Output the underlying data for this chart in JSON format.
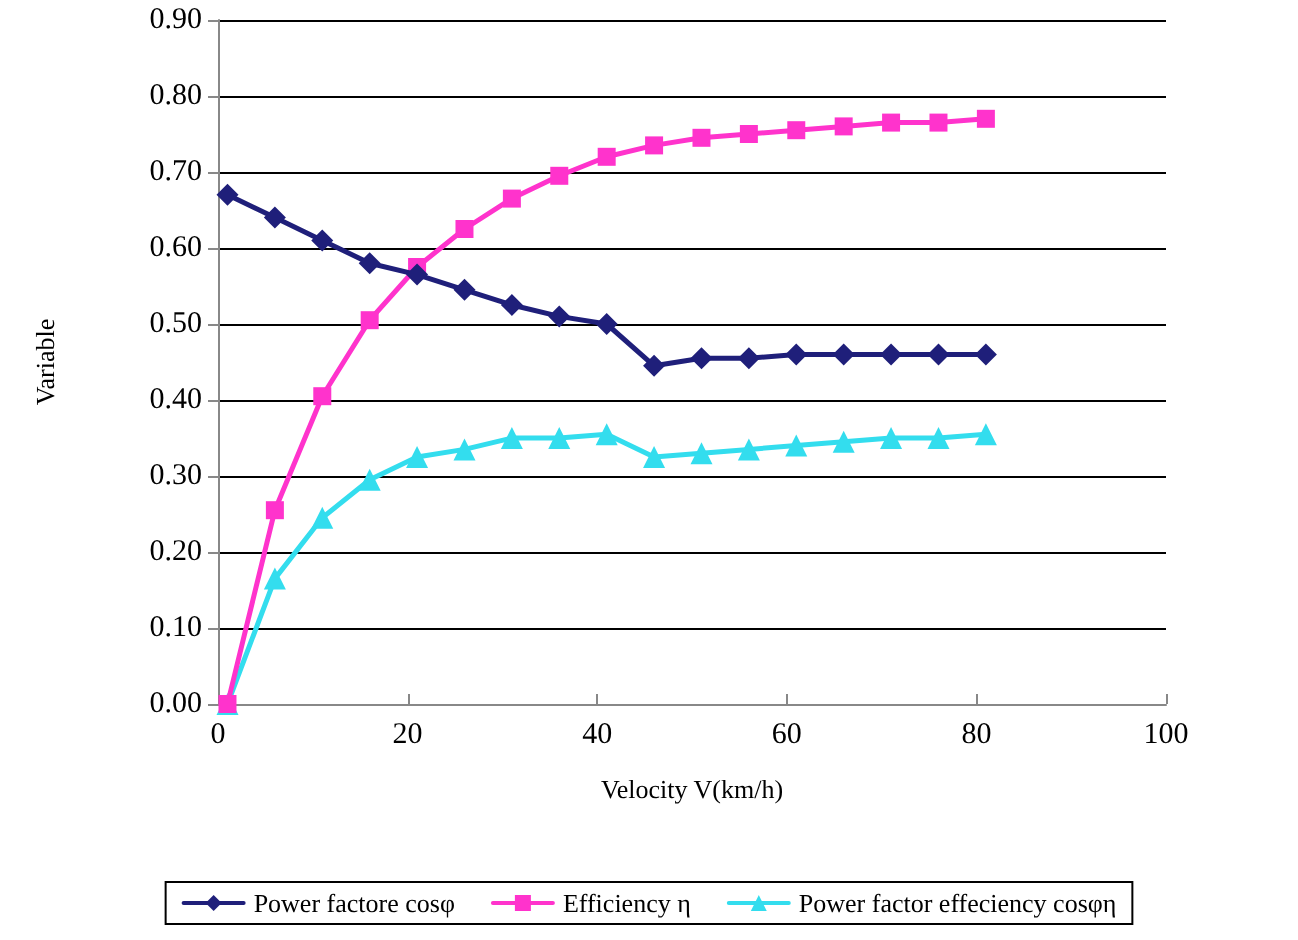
{
  "chart_data": {
    "type": "line",
    "xlabel": "Velocity V(km/h)",
    "ylabel": "Variable",
    "x": [
      1,
      6,
      11,
      16,
      21,
      26,
      31,
      36,
      41,
      46,
      51,
      56,
      61,
      66,
      71,
      76,
      81
    ],
    "series": [
      {
        "name": "Power factore cosφ",
        "color": "#1f1f7a",
        "marker": "diamond",
        "values": [
          0.67,
          0.64,
          0.61,
          0.58,
          0.565,
          0.545,
          0.525,
          0.51,
          0.5,
          0.445,
          0.455,
          0.455,
          0.46,
          0.46,
          0.46,
          0.46,
          0.46
        ]
      },
      {
        "name": "Efficiency η",
        "color": "#ff33cc",
        "marker": "square",
        "values": [
          0,
          0.255,
          0.405,
          0.505,
          0.575,
          0.625,
          0.665,
          0.695,
          0.72,
          0.735,
          0.745,
          0.75,
          0.755,
          0.76,
          0.765,
          0.765,
          0.77
        ]
      },
      {
        "name": "Power factor effeciency cosφη",
        "color": "#33ddee",
        "marker": "triangle",
        "values": [
          0,
          0.165,
          0.245,
          0.295,
          0.325,
          0.335,
          0.35,
          0.35,
          0.355,
          0.325,
          0.33,
          0.335,
          0.34,
          0.345,
          0.35,
          0.35,
          0.355
        ]
      }
    ],
    "xlim": [
      0,
      100
    ],
    "xticks": [
      0,
      20,
      40,
      60,
      80,
      100
    ],
    "ylim": [
      0,
      0.9
    ],
    "yticks": [
      {
        "value": 0,
        "label": "0.00"
      },
      {
        "value": 0.1,
        "label": "0.10"
      },
      {
        "value": 0.2,
        "label": "0.20"
      },
      {
        "value": 0.3,
        "label": "0.30"
      },
      {
        "value": 0.4,
        "label": "0.40"
      },
      {
        "value": 0.5,
        "label": "0.50"
      },
      {
        "value": 0.6,
        "label": "0.60"
      },
      {
        "value": 0.7,
        "label": "0.70"
      },
      {
        "value": 0.8,
        "label": "0.80"
      },
      {
        "value": 0.9,
        "label": "0.90"
      }
    ],
    "grid": "y",
    "legend": "bottom",
    "line_style": "solid"
  }
}
